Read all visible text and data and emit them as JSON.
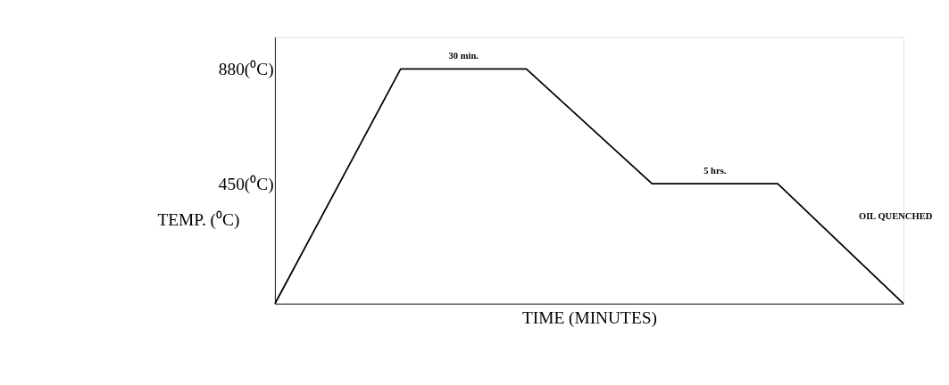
{
  "chart_data": {
    "type": "line",
    "categories": [
      null,
      null,
      null,
      null,
      null,
      null
    ],
    "series": [
      {
        "color": "#000000",
        "values": [
          0,
          880,
          880,
          450,
          450,
          0
        ]
      }
    ],
    "ylim": [
      0,
      1000
    ],
    "yticks": [
      {
        "value": 880,
        "label": "880(⁰C)"
      },
      {
        "value": 450,
        "label": "450(⁰C)"
      }
    ],
    "ylabel": "TEMP. (⁰C)",
    "xlabel": "TIME (MINUTES)",
    "tick_labels": "y",
    "grid": false,
    "marker": "none",
    "line_style": "solid",
    "annotations": [
      "30 min.",
      "5 hrs.",
      "OIL QUENCHED"
    ]
  }
}
